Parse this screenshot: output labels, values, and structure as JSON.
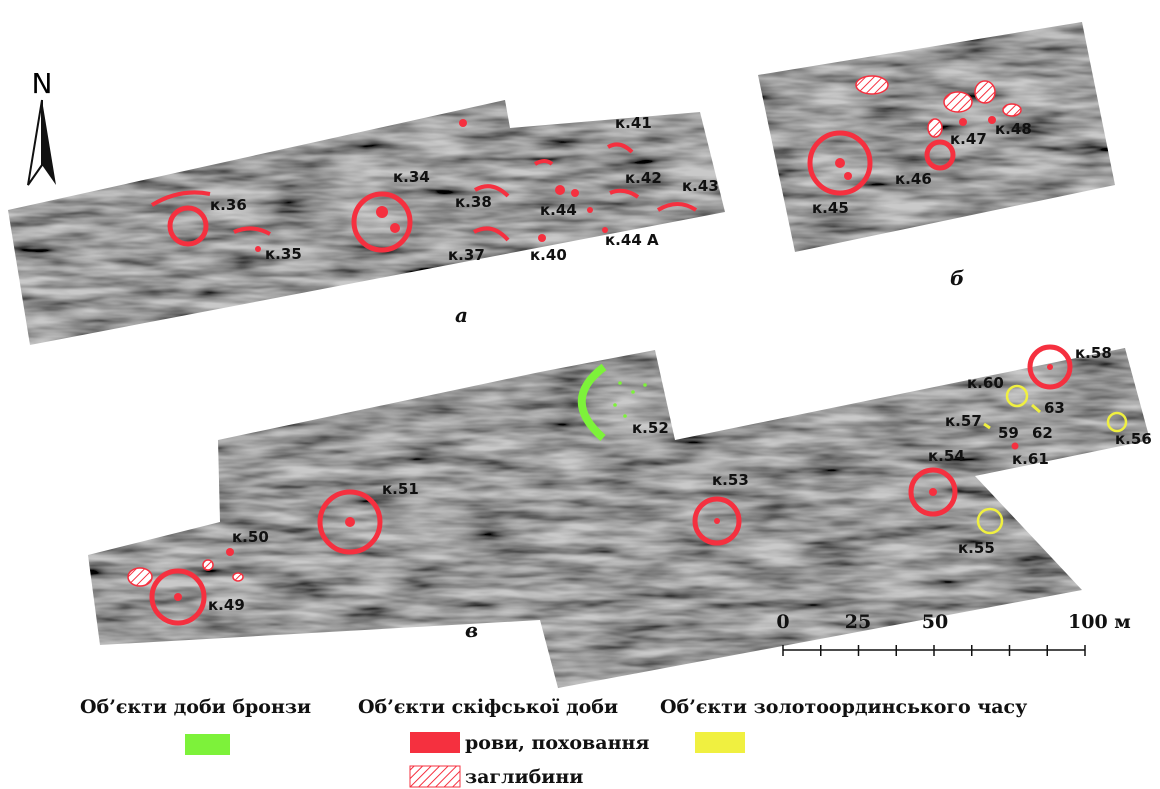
{
  "north": "N",
  "panels": {
    "a": "а",
    "b": "б",
    "v": "в"
  },
  "labels": [
    "к.36",
    "к.35",
    "к.34",
    "к.38",
    "к.37",
    "к.44",
    "к.40",
    "к.41",
    "к.42",
    "к.43",
    "к.44 А",
    "к.45",
    "к.46",
    "к.47",
    "к.48",
    "к.49",
    "к.50",
    "к.51",
    "к.52",
    "к.53",
    "к.54",
    "к.55",
    "к.56",
    "к.57",
    "к.58",
    "к.60",
    "63",
    "59",
    "62",
    "к.61"
  ],
  "scale": {
    "ticks": [
      "0",
      "25",
      "50",
      "100 м"
    ]
  },
  "legend": {
    "headers": [
      "Об’єкти доби бронзи",
      "Об’єкти скіфської доби",
      "Об’єкти золотоординського часу"
    ],
    "items": [
      "рови, поховання",
      "заглибини"
    ]
  }
}
